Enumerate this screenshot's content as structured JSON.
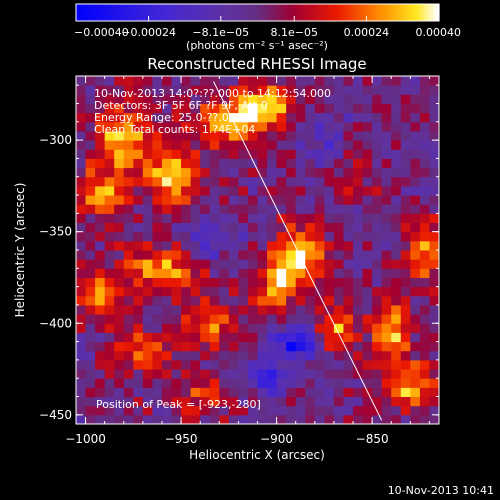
{
  "chart_data": {
    "type": "heatmap",
    "title": "Reconstructed RHESSI Image",
    "xlabel": "Heliocentric X (arcsec)",
    "ylabel": "Heliocentric Y (arcsec)",
    "xlim": [
      -1005,
      -815
    ],
    "ylim": [
      -455,
      -265
    ],
    "xticks": [
      -1000,
      -950,
      -900,
      -850
    ],
    "yticks": [
      -450,
      -400,
      -350,
      -300
    ],
    "xtick_labels": [
      "−1000",
      "−950",
      "−900",
      "−850"
    ],
    "ytick_labels": [
      "−450",
      "−400",
      "−350",
      "−300"
    ],
    "colorbar": {
      "range": [
        -0.0004,
        0.0004
      ],
      "ticks": [
        -0.0004,
        -0.00024,
        -8.1e-05,
        8.1e-05,
        0.00024,
        0.0004
      ],
      "tick_labels": [
        "−0.00040",
        "−0.00024",
        "−8.1e−05",
        "8.1e−05",
        "0.00024",
        "0.00040"
      ],
      "units_label": "(photons cm⁻² s⁻¹ asec⁻²)"
    },
    "limb_line": {
      "x": [
        -933,
        -845
      ],
      "y": [
        -268,
        -453
      ]
    },
    "blobs": [
      {
        "x": -980,
        "y": -300,
        "sx": 10,
        "sy": 14,
        "v": 0.00033
      },
      {
        "x": -955,
        "y": -320,
        "sx": 9,
        "sy": 10,
        "v": 0.00036
      },
      {
        "x": -992,
        "y": -330,
        "sx": 8,
        "sy": 9,
        "v": 0.00028
      },
      {
        "x": -925,
        "y": -290,
        "sx": 14,
        "sy": 9,
        "v": 0.00032
      },
      {
        "x": -905,
        "y": -280,
        "sx": 10,
        "sy": 8,
        "v": 0.0003
      },
      {
        "x": -960,
        "y": -370,
        "sx": 16,
        "sy": 9,
        "v": 0.00028
      },
      {
        "x": -995,
        "y": -385,
        "sx": 8,
        "sy": 10,
        "v": 0.00026
      },
      {
        "x": -970,
        "y": -415,
        "sx": 10,
        "sy": 9,
        "v": 0.00024
      },
      {
        "x": -935,
        "y": -400,
        "sx": 10,
        "sy": 10,
        "v": 0.00022
      },
      {
        "x": -940,
        "y": -440,
        "sx": 12,
        "sy": 7,
        "v": 0.00018
      },
      {
        "x": -888,
        "y": -363,
        "sx": 9,
        "sy": 11,
        "v": 0.0004
      },
      {
        "x": -900,
        "y": -380,
        "sx": 7,
        "sy": 8,
        "v": 0.0003
      },
      {
        "x": -868,
        "y": -402,
        "sx": 7,
        "sy": 9,
        "v": 0.00026
      },
      {
        "x": -840,
        "y": -405,
        "sx": 7,
        "sy": 12,
        "v": 0.00032
      },
      {
        "x": -822,
        "y": -360,
        "sx": 7,
        "sy": 12,
        "v": 0.00028
      },
      {
        "x": -830,
        "y": -435,
        "sx": 10,
        "sy": 9,
        "v": 0.00026
      },
      {
        "x": -860,
        "y": -320,
        "sx": 8,
        "sy": 8,
        "v": 0.00012
      },
      {
        "x": -890,
        "y": -410,
        "sx": 8,
        "sy": 8,
        "v": -0.0003
      },
      {
        "x": -905,
        "y": -430,
        "sx": 8,
        "sy": 7,
        "v": -0.00022
      },
      {
        "x": -935,
        "y": -355,
        "sx": 9,
        "sy": 9,
        "v": -0.00018
      },
      {
        "x": -875,
        "y": -300,
        "sx": 9,
        "sy": 9,
        "v": -0.00012
      }
    ]
  },
  "annotations": {
    "line1": "10-Nov-2013 14:0?:??.000 to 14:12:54.000",
    "line2": "Detectors: 3F 5F 6F ?F 9F, Att 0",
    "line3": "Energy Range: 25.0-??.0 keV",
    "line4": "Clean    Total counts: 1.?4E+04",
    "peak": "Position of Peak = [-923,-280]"
  },
  "footer": {
    "timestamp": "10-Nov-2013 10:41"
  }
}
